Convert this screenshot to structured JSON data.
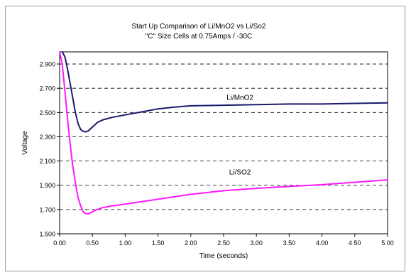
{
  "chart_data": {
    "type": "line",
    "title": "Start Up Comparison of Li/MnO2 vs Li/So2",
    "subtitle": "\"C\" Size Cells at 0.75Amps / -30C",
    "xlabel": "Time (seconds)",
    "ylabel": "Voltage",
    "xlim": [
      0,
      5
    ],
    "ylim": [
      1.5,
      3.0
    ],
    "x_ticks": [
      "0.00",
      "0.50",
      "1.00",
      "1.50",
      "2.00",
      "2.50",
      "3.00",
      "3.50",
      "4.00",
      "4.50",
      "5.00"
    ],
    "y_ticks": [
      "1.500",
      "1.700",
      "1.900",
      "2.100",
      "2.300",
      "2.500",
      "2.700",
      "2.900"
    ],
    "grid": "horizontal-dashed",
    "legend": "none",
    "series": [
      {
        "name": "Li/MnO2",
        "color": "#1a1a6e",
        "x": [
          0.04,
          0.08,
          0.12,
          0.16,
          0.2,
          0.24,
          0.28,
          0.32,
          0.36,
          0.4,
          0.44,
          0.48,
          0.52,
          0.58,
          0.66,
          0.8,
          1.0,
          1.25,
          1.5,
          1.75,
          2.0,
          2.5,
          3.0,
          3.5,
          4.0,
          4.5,
          5.0
        ],
        "y": [
          3.0,
          2.96,
          2.86,
          2.74,
          2.62,
          2.5,
          2.41,
          2.36,
          2.345,
          2.34,
          2.35,
          2.37,
          2.39,
          2.42,
          2.44,
          2.46,
          2.48,
          2.505,
          2.53,
          2.545,
          2.555,
          2.56,
          2.565,
          2.57,
          2.57,
          2.575,
          2.58
        ]
      },
      {
        "name": "Li/SO2",
        "color": "#ff19ff",
        "x": [
          0.0,
          0.04,
          0.08,
          0.12,
          0.16,
          0.2,
          0.24,
          0.28,
          0.32,
          0.36,
          0.4,
          0.44,
          0.48,
          0.55,
          0.65,
          0.8,
          1.0,
          1.25,
          1.5,
          1.75,
          2.0,
          2.5,
          3.0,
          3.5,
          4.0,
          4.5,
          5.0
        ],
        "y": [
          3.0,
          2.9,
          2.68,
          2.45,
          2.24,
          2.06,
          1.92,
          1.8,
          1.73,
          1.68,
          1.665,
          1.665,
          1.675,
          1.695,
          1.715,
          1.73,
          1.745,
          1.765,
          1.785,
          1.805,
          1.825,
          1.855,
          1.875,
          1.89,
          1.905,
          1.925,
          1.945
        ]
      }
    ],
    "annotations": [
      {
        "text": "Li/MnO2",
        "x": 2.75,
        "y": 2.605
      },
      {
        "text": "Li/SO2",
        "x": 2.75,
        "y": 1.99
      }
    ]
  }
}
